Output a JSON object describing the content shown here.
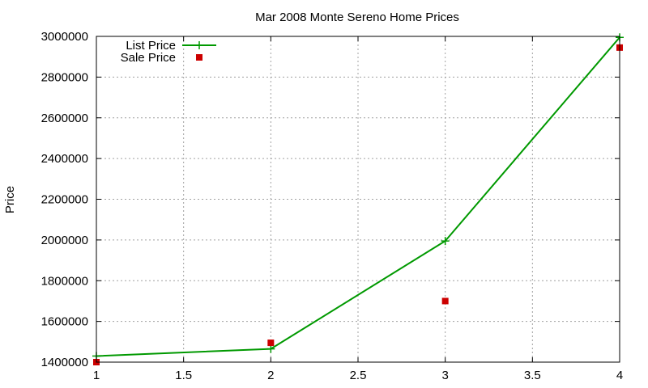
{
  "chart_data": {
    "type": "line",
    "title": "Mar 2008 Monte Sereno Home Prices",
    "xlabel": "",
    "ylabel": "Price",
    "xlim": [
      1,
      4
    ],
    "ylim": [
      1400000,
      3000000
    ],
    "x_ticks": [
      "1",
      "1.5",
      "2",
      "2.5",
      "3",
      "3.5",
      "4"
    ],
    "y_ticks": [
      "1400000",
      "1600000",
      "1800000",
      "2000000",
      "2200000",
      "2400000",
      "2600000",
      "2800000",
      "3000000"
    ],
    "grid": true,
    "legend_position": "top-left",
    "series": [
      {
        "name": "List Price",
        "style": "lines+points",
        "marker": "plus",
        "color": "#009900",
        "x": [
          1,
          2,
          3,
          4
        ],
        "y": [
          1430000,
          1465000,
          1995000,
          2995000
        ]
      },
      {
        "name": "Sale Price",
        "style": "points",
        "marker": "square",
        "color": "#cc0000",
        "x": [
          1,
          2,
          3,
          4
        ],
        "y": [
          1400000,
          1495000,
          1700000,
          2945000
        ]
      }
    ]
  }
}
